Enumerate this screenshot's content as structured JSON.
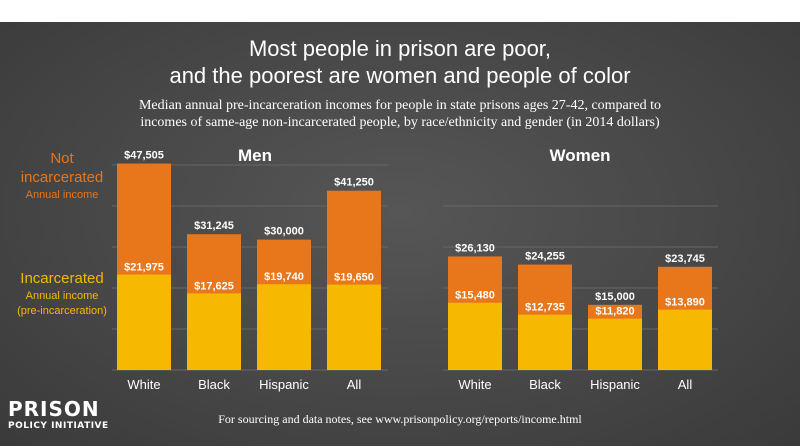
{
  "chart_data": [
    {
      "type": "bar",
      "title": "Men",
      "categories": [
        "White",
        "Black",
        "Hispanic",
        "All"
      ],
      "series": [
        {
          "name": "Not incarcerated",
          "values": [
            47505,
            31245,
            30000,
            41250
          ],
          "labels": [
            "$47,505",
            "$31,245",
            "$30,000",
            "$41,250"
          ]
        },
        {
          "name": "Incarcerated",
          "values": [
            21975,
            17625,
            19740,
            19650
          ],
          "labels": [
            "$21,975",
            "$17,625",
            "$19,740",
            "$19,650"
          ]
        }
      ],
      "ylim": [
        0,
        52000
      ],
      "grid": true
    },
    {
      "type": "bar",
      "title": "Women",
      "categories": [
        "White",
        "Black",
        "Hispanic",
        "All"
      ],
      "series": [
        {
          "name": "Not incarcerated",
          "values": [
            26130,
            24255,
            15000,
            23745
          ],
          "labels": [
            "$26,130",
            "$24,255",
            "$15,000",
            "$23,745"
          ]
        },
        {
          "name": "Incarcerated",
          "values": [
            15480,
            12735,
            11820,
            13890
          ],
          "labels": [
            "$15,480",
            "$12,735",
            "$11,820",
            "$13,890"
          ]
        }
      ],
      "ylim": [
        0,
        52000
      ],
      "grid": true
    }
  ],
  "header": {
    "title_line1": "Most people in prison are poor,",
    "title_line2": "and the poorest are women and people of color",
    "subtitle_line1": "Median annual pre-incarceration incomes for people in state prisons ages 27-42, compared to",
    "subtitle_line2": "incomes of same-age non-incarcerated people, by race/ethnicity and gender (in 2014 dollars)"
  },
  "legend": {
    "not_incarcerated_line1": "Not",
    "not_incarcerated_line2": "incarcerated",
    "not_incarcerated_sub": "Annual income",
    "incarcerated_line1": "Incarcerated",
    "incarcerated_sub1": "Annual income",
    "incarcerated_sub2": "(pre-incarceration)"
  },
  "footer": {
    "note": "For sourcing and data notes, see www.prisonpolicy.org/reports/income.html",
    "logo_line1": "PRISON",
    "logo_line2": "POLICY INITIATIVE"
  },
  "colors": {
    "not_incarcerated": "#e8761a",
    "incarcerated": "#f6b800",
    "background": "#4a4a4a",
    "grid": "#666666"
  }
}
